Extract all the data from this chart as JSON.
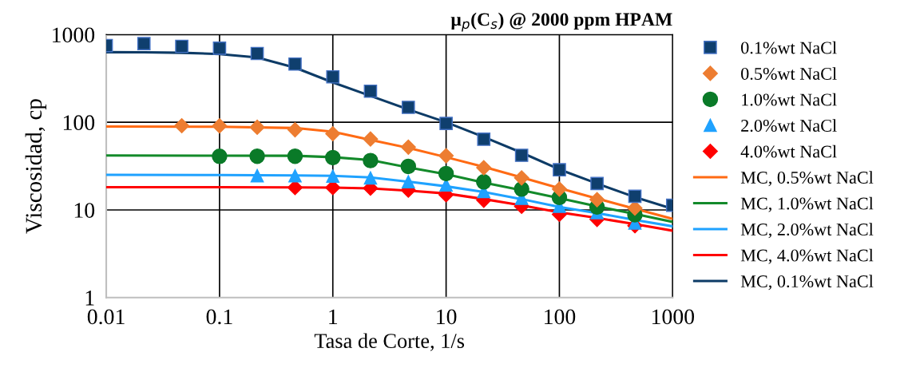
{
  "chart_data": {
    "type": "scatter",
    "title": "μ$_{p}$(C$_{s}$) @ 2000 ppm HPAM",
    "xlabel": "Tasa de Corte, 1/s",
    "ylabel": "Viscosidad, cp",
    "log": "xy",
    "xlim": [
      0.01,
      1000
    ],
    "ylim": [
      1,
      1000
    ],
    "xticks": [
      0.01,
      0.1,
      1,
      10,
      100,
      1000
    ],
    "yticks": [
      1,
      10,
      100,
      1000
    ],
    "grid": true,
    "legend": "right",
    "series": [
      {
        "name": "0.1%wt NaCl",
        "marker": "square",
        "color": "#0f3f6e",
        "x": [
          0.01,
          0.0215,
          0.0464,
          0.1,
          0.215,
          0.464,
          1,
          2.15,
          4.64,
          10,
          21.5,
          46.4,
          100,
          215,
          464,
          1000
        ],
        "values": [
          750,
          789,
          735,
          700,
          609,
          461,
          330,
          226,
          148,
          97,
          64,
          42,
          28.7,
          20,
          14.3,
          11.3
        ]
      },
      {
        "name": "0.5%wt NaCl",
        "marker": "diamond",
        "color": "#ed7d31",
        "x": [
          0.0464,
          0.1,
          0.215,
          0.464,
          1,
          2.15,
          4.64,
          10,
          21.5,
          46.4,
          100,
          215,
          464
        ],
        "values": [
          91.4,
          91,
          87.7,
          82,
          74,
          64.4,
          52,
          41.5,
          30.3,
          23.2,
          17.3,
          13.1,
          10.5
        ]
      },
      {
        "name": "1.0%wt NaCl",
        "marker": "circle",
        "color": "#0a7a28",
        "x": [
          0.1,
          0.215,
          0.464,
          1,
          2.15,
          4.64,
          10,
          21.5,
          46.4,
          100,
          215,
          464
        ],
        "values": [
          40.9,
          41,
          41,
          39.5,
          36.6,
          31.4,
          26,
          20.9,
          17.3,
          13.9,
          10.8,
          8.8
        ]
      },
      {
        "name": "2.0%wt NaCl",
        "marker": "triangle",
        "color": "#1fa2ff",
        "x": [
          0.215,
          0.464,
          1,
          2.15,
          4.64,
          10,
          21.5,
          46.4,
          100,
          215,
          464
        ],
        "values": [
          24.6,
          24.5,
          24.3,
          23.2,
          21,
          19.3,
          16.2,
          13.6,
          11,
          9.3,
          7.1
        ]
      },
      {
        "name": "4.0%wt NaCl",
        "marker": "diamond",
        "color": "#ff0000",
        "x": [
          0.464,
          1,
          2.15,
          4.64,
          10,
          21.5,
          46.4,
          100,
          215,
          464
        ],
        "values": [
          18,
          18,
          17.7,
          16.8,
          14.9,
          12.9,
          11,
          8.9,
          7.8,
          6.6
        ]
      },
      {
        "name": "MC, 0.5%wt NaCl",
        "type": "line",
        "color": "#ff6a13",
        "x": [
          0.01,
          0.1,
          0.464,
          1,
          2.15,
          4.64,
          10,
          21.5,
          46.4,
          100,
          215,
          464,
          1000
        ],
        "values": [
          89.5,
          89,
          86,
          78,
          63,
          51,
          40,
          31,
          23.5,
          17.7,
          13.5,
          10.3,
          7.9
        ]
      },
      {
        "name": "MC, 1.0%wt NaCl",
        "type": "line",
        "color": "#138a2a",
        "x": [
          0.01,
          0.1,
          0.464,
          1,
          2.15,
          4.64,
          10,
          21.5,
          46.4,
          100,
          215,
          464,
          1000
        ],
        "values": [
          41.8,
          41.6,
          41.5,
          40,
          37,
          30.5,
          25.5,
          20.5,
          16.8,
          13.6,
          11,
          9,
          7.3
        ]
      },
      {
        "name": "MC, 2.0%wt NaCl",
        "type": "line",
        "color": "#1fa2ff",
        "x": [
          0.01,
          0.1,
          0.464,
          1,
          2.15,
          4.64,
          10,
          21.5,
          46.4,
          100,
          215,
          464,
          1000
        ],
        "values": [
          25.1,
          25,
          24.8,
          24.5,
          23.5,
          21,
          18.6,
          16,
          13.3,
          10.8,
          9.2,
          7.7,
          6.5
        ]
      },
      {
        "name": "MC, 4.0%wt NaCl",
        "type": "line",
        "color": "#ff0000",
        "x": [
          0.01,
          0.1,
          0.464,
          1,
          2.15,
          4.64,
          10,
          21.5,
          46.4,
          100,
          215,
          464,
          1000
        ],
        "values": [
          18.2,
          18.2,
          18.1,
          18,
          17.6,
          16.6,
          15.4,
          13.3,
          11.3,
          9.4,
          8.1,
          6.9,
          5.8
        ]
      },
      {
        "name": "MC, 0.1%wt NaCl",
        "type": "line",
        "color": "#0d3b66",
        "x": [
          0.01,
          0.0215,
          0.0464,
          0.1,
          0.215,
          0.464,
          1,
          2.15,
          4.64,
          10,
          21.5,
          46.4,
          100,
          215,
          464,
          1000
        ],
        "values": [
          630,
          628,
          620,
          600,
          548,
          420,
          285,
          200,
          140,
          100,
          68,
          45,
          29,
          20,
          14,
          10.3
        ]
      }
    ]
  }
}
